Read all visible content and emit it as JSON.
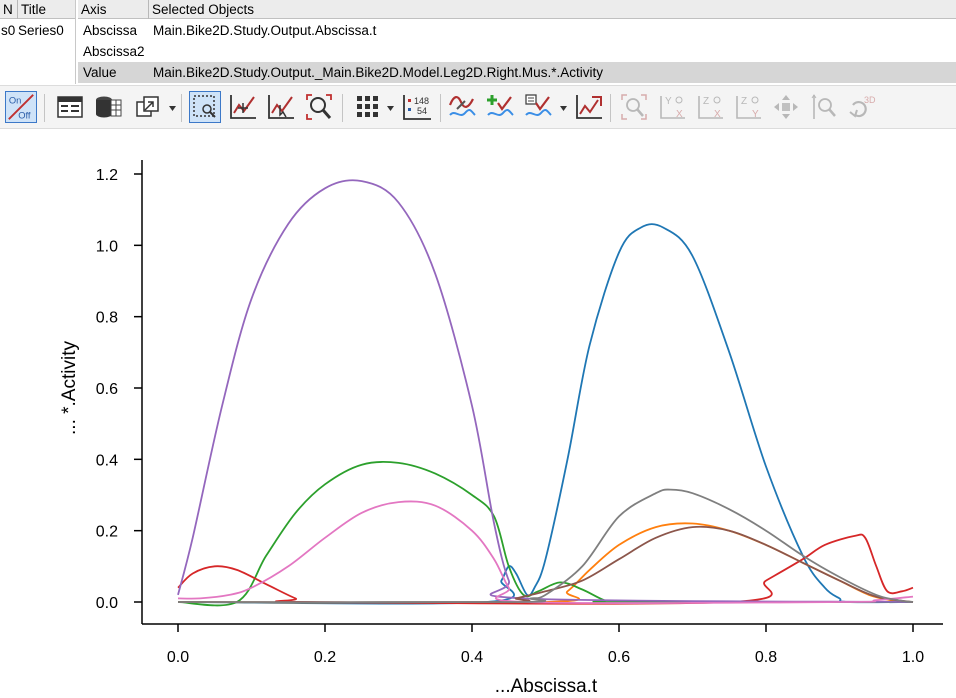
{
  "series_table": {
    "headers": [
      "N",
      "Title"
    ],
    "rows": [
      {
        "n": "s0",
        "title": "Series0"
      }
    ]
  },
  "axis_table": {
    "headers": [
      "Axis",
      "Selected Objects"
    ],
    "rows": [
      {
        "axis": "Abscissa",
        "object": "Main.Bike2D.Study.Output.Abscissa.t"
      },
      {
        "axis": "Abscissa2",
        "object": ""
      },
      {
        "axis": "Value",
        "object": "Main.Bike2D.Study.Output._Main.Bike2D.Model.Leg2D.Right.Mus.*.Activity"
      }
    ]
  },
  "toolbar": {
    "onoff": {
      "on": "On",
      "off": "Off"
    },
    "number_display": {
      "top": "148",
      "bottom": "54"
    },
    "rotate_3d_label": "3D",
    "icons": [
      "on-off-toggle-icon",
      "table-view-icon",
      "database-icon",
      "export-window-icon",
      "zoom-box-icon",
      "pan-icon",
      "select-curve-icon",
      "zoom-icon",
      "grid-icon",
      "number-display-icon",
      "curve-style-icon",
      "add-curve-icon",
      "curve-options-icon",
      "export-curve-icon",
      "zoom-fit-icon",
      "view-yx-icon",
      "view-zx-icon",
      "view-zy-icon",
      "move-icon",
      "zoom-axis-icon",
      "rotate-3d-icon"
    ]
  },
  "chart_data": {
    "type": "line",
    "xlabel": "...Abscissa.t",
    "ylabel": "... *.Activity",
    "xlim": [
      0.0,
      1.0
    ],
    "ylim": [
      0.0,
      1.2
    ],
    "xticks": [
      "0.0",
      "0.2",
      "0.4",
      "0.6",
      "0.8",
      "1.0"
    ],
    "yticks": [
      "0.0",
      "0.2",
      "0.4",
      "0.6",
      "0.8",
      "1.0",
      "1.2"
    ],
    "grid": false,
    "legend": "none",
    "series": [
      {
        "color": "#1f77b4",
        "x": [
          0.0,
          0.42,
          0.44,
          0.45,
          0.46,
          0.475,
          0.485,
          0.5,
          0.53,
          0.56,
          0.6,
          0.63,
          0.66,
          0.7,
          0.75,
          0.8,
          0.85,
          0.88,
          0.9,
          0.91,
          1.0
        ],
        "y": [
          0.0,
          0.0,
          0.06,
          0.1,
          0.08,
          0.02,
          0.04,
          0.12,
          0.4,
          0.72,
          0.98,
          1.05,
          1.05,
          0.97,
          0.7,
          0.38,
          0.13,
          0.04,
          0.01,
          0.0,
          0.0
        ]
      },
      {
        "color": "#ff7f0e",
        "x": [
          0.0,
          0.5,
          0.53,
          0.56,
          0.6,
          0.65,
          0.7,
          0.75,
          0.8,
          0.85,
          0.9,
          0.94,
          0.97,
          1.0
        ],
        "y": [
          0.0,
          0.0,
          0.03,
          0.09,
          0.16,
          0.21,
          0.22,
          0.2,
          0.16,
          0.11,
          0.06,
          0.02,
          0.005,
          0.0
        ]
      },
      {
        "color": "#2ca02c",
        "x": [
          0.0,
          0.08,
          0.12,
          0.16,
          0.2,
          0.25,
          0.3,
          0.35,
          0.4,
          0.43,
          0.45,
          0.47,
          0.49,
          0.52,
          0.55,
          0.58,
          0.6,
          1.0
        ],
        "y": [
          0.0,
          0.0,
          0.13,
          0.25,
          0.33,
          0.385,
          0.39,
          0.36,
          0.3,
          0.24,
          0.1,
          0.02,
          0.03,
          0.055,
          0.035,
          0.005,
          0.0,
          0.0
        ]
      },
      {
        "color": "#d62728",
        "x": [
          0.0,
          0.02,
          0.05,
          0.08,
          0.12,
          0.16,
          0.18,
          0.75,
          0.8,
          0.85,
          0.88,
          0.92,
          0.935,
          0.95,
          0.965,
          0.985,
          1.0
        ],
        "y": [
          0.04,
          0.08,
          0.1,
          0.09,
          0.05,
          0.01,
          0.0,
          0.0,
          0.06,
          0.12,
          0.16,
          0.185,
          0.18,
          0.1,
          0.03,
          0.03,
          0.04
        ]
      },
      {
        "color": "#9467bd",
        "x": [
          0.0,
          0.02,
          0.06,
          0.1,
          0.15,
          0.2,
          0.25,
          0.3,
          0.35,
          0.4,
          0.43,
          0.45,
          0.47,
          1.0
        ],
        "y": [
          0.02,
          0.18,
          0.55,
          0.85,
          1.06,
          1.16,
          1.18,
          1.12,
          0.92,
          0.55,
          0.22,
          0.06,
          0.01,
          0.0
        ]
      },
      {
        "color": "#8c564b",
        "x": [
          0.0,
          0.44,
          0.46,
          0.48,
          0.5,
          0.55,
          0.6,
          0.65,
          0.7,
          0.75,
          0.8,
          0.85,
          0.9,
          0.95,
          1.0
        ],
        "y": [
          0.0,
          0.0,
          0.01,
          0.02,
          0.03,
          0.06,
          0.12,
          0.18,
          0.21,
          0.2,
          0.16,
          0.11,
          0.06,
          0.015,
          0.0
        ]
      },
      {
        "color": "#e377c2",
        "x": [
          0.0,
          0.03,
          0.07,
          0.1,
          0.15,
          0.2,
          0.25,
          0.3,
          0.35,
          0.4,
          0.43,
          0.45,
          0.47,
          0.9,
          0.95,
          1.0
        ],
        "y": [
          0.01,
          0.01,
          0.02,
          0.04,
          0.1,
          0.18,
          0.25,
          0.28,
          0.27,
          0.2,
          0.12,
          0.04,
          0.0,
          0.0,
          0.005,
          0.015
        ]
      },
      {
        "color": "#7f7f7f",
        "x": [
          0.0,
          0.46,
          0.48,
          0.5,
          0.55,
          0.6,
          0.65,
          0.67,
          0.7,
          0.75,
          0.8,
          0.85,
          0.9,
          0.95,
          0.98,
          1.0
        ],
        "y": [
          0.0,
          0.0,
          0.01,
          0.02,
          0.1,
          0.24,
          0.305,
          0.315,
          0.305,
          0.26,
          0.2,
          0.13,
          0.07,
          0.02,
          0.005,
          0.0
        ]
      }
    ]
  }
}
